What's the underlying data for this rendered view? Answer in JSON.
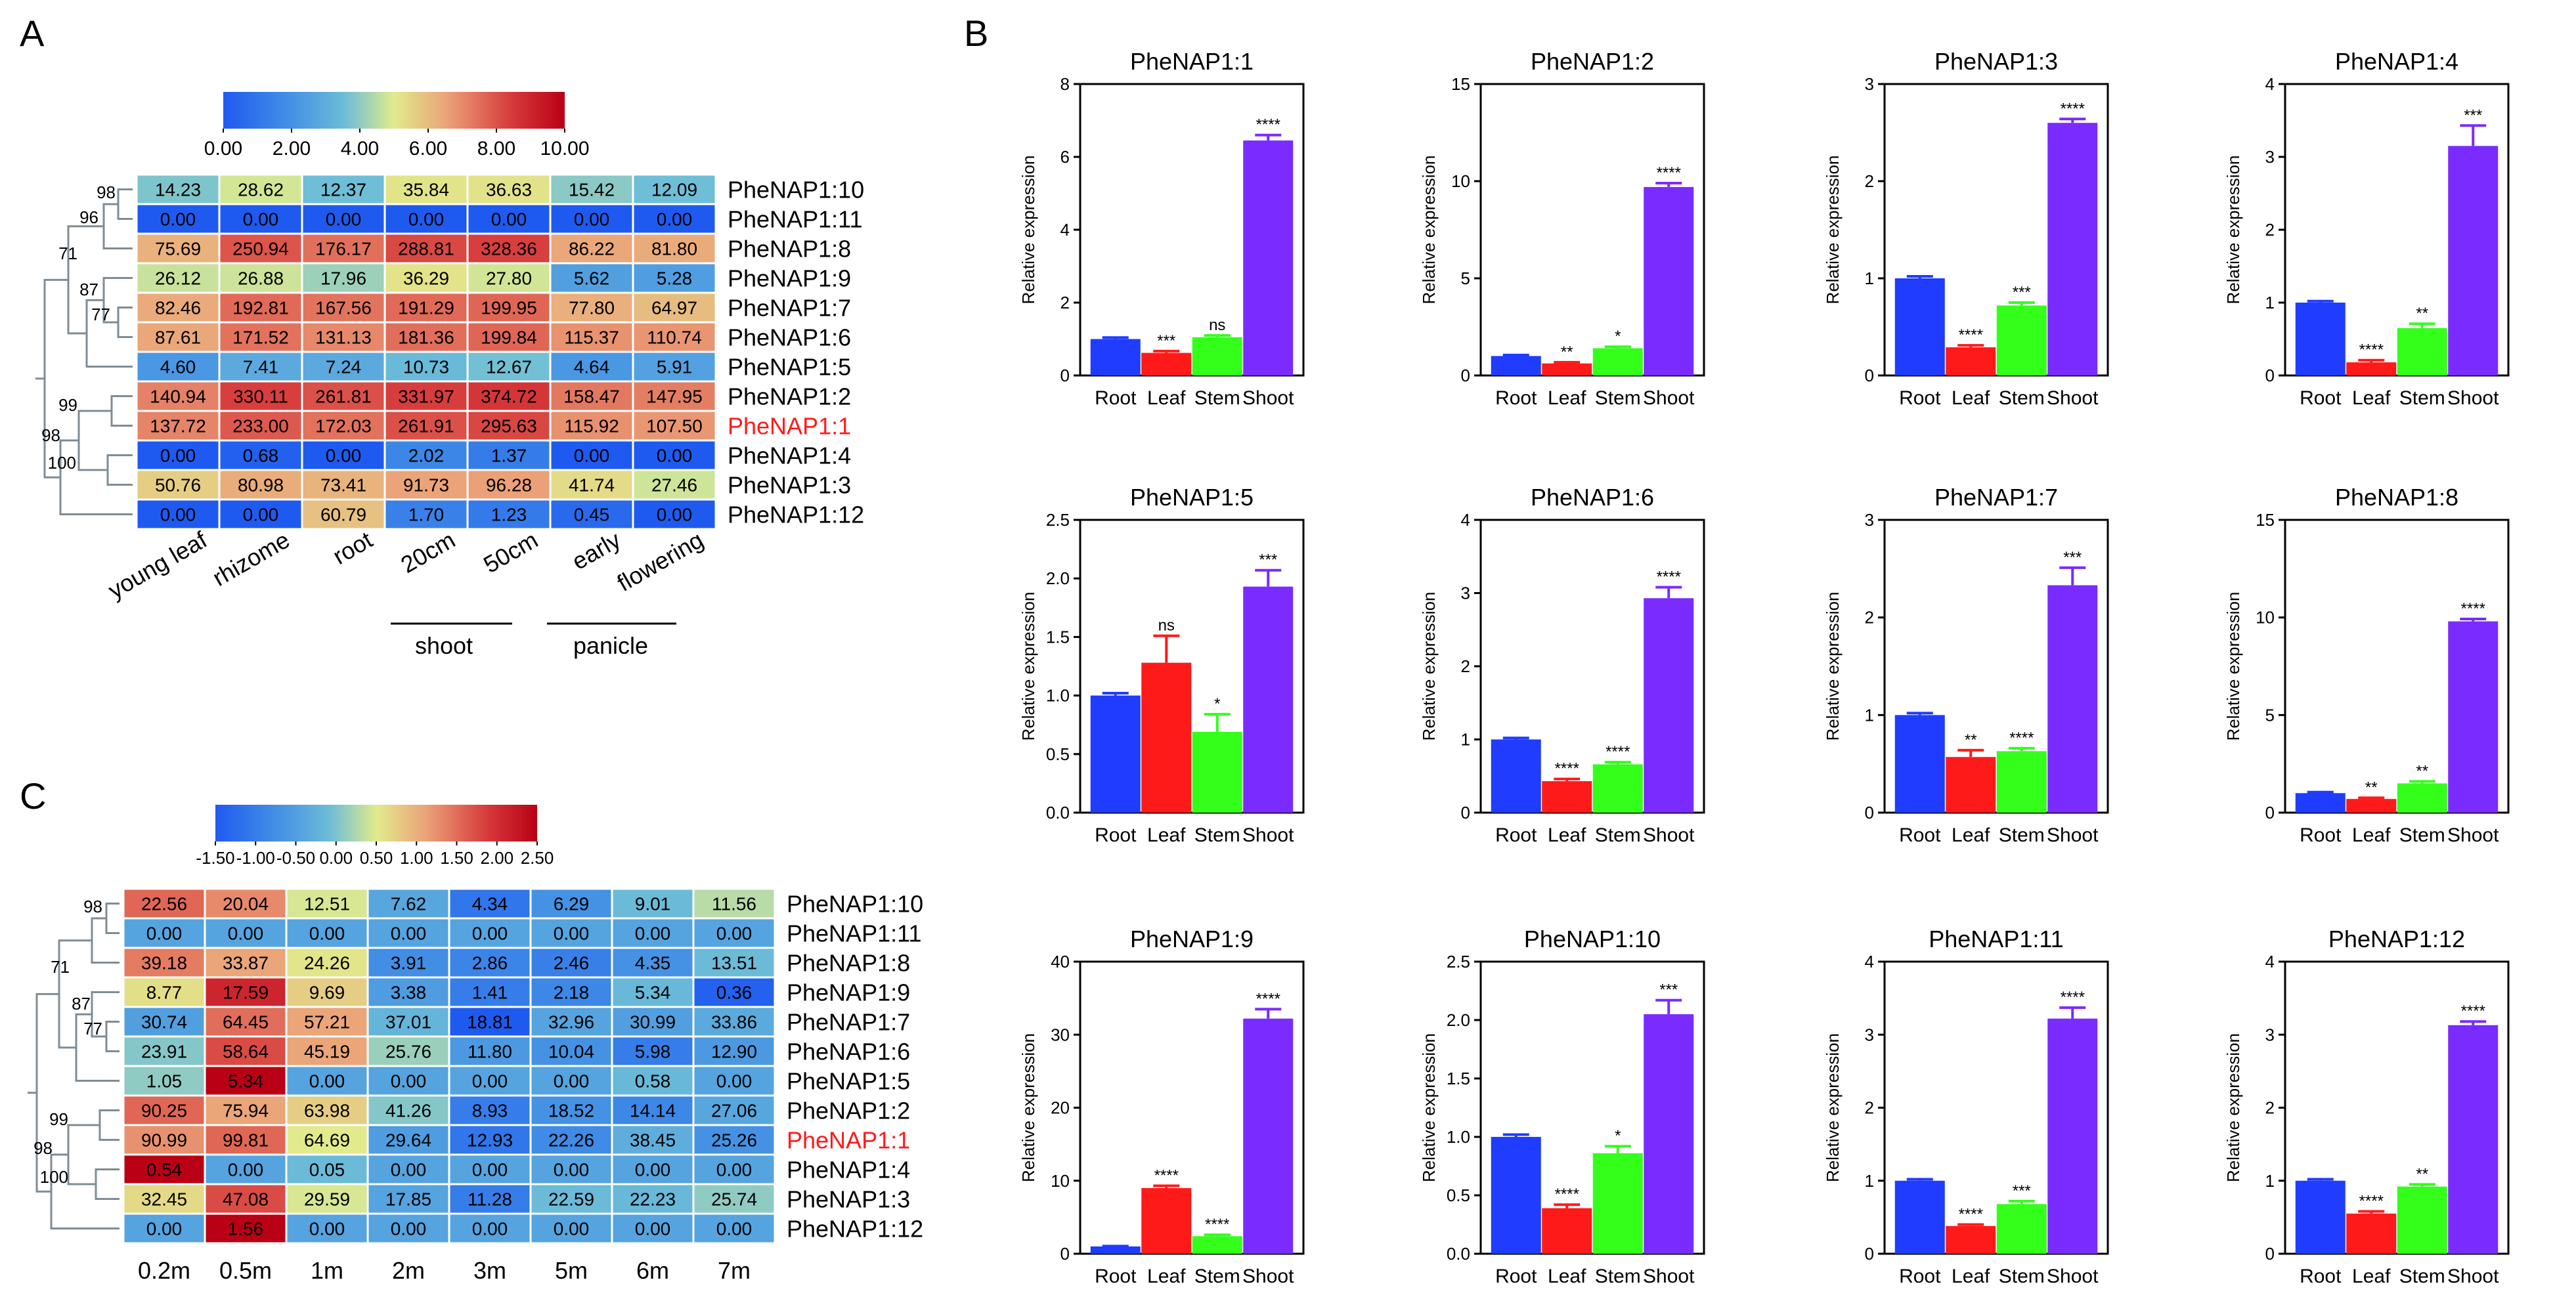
{
  "panels": {
    "a": "A",
    "b": "B",
    "c": "C"
  },
  "heatmap_a": {
    "colorbar_ticks": [
      "0.00",
      "2.00",
      "4.00",
      "6.00",
      "8.00",
      "10.00"
    ],
    "columns": [
      "young leaf",
      "rhizome",
      "root",
      "20cm",
      "50cm",
      "early",
      "flowering"
    ],
    "group_labels": [
      "shoot",
      "panicle"
    ],
    "rows": [
      {
        "label": "PheNAP1:10",
        "values": [
          "14.23",
          "28.62",
          "12.37",
          "35.84",
          "36.63",
          "15.42",
          "12.09"
        ],
        "color_values": [
          3.8,
          4.83,
          3.6,
          5.16,
          5.2,
          3.94,
          3.6
        ]
      },
      {
        "label": "PheNAP1:11",
        "values": [
          "0.00",
          "0.00",
          "0.00",
          "0.00",
          "0.00",
          "0.00",
          "0.00"
        ],
        "color_values": [
          0,
          0,
          0,
          0,
          0,
          0,
          0
        ]
      },
      {
        "label": "PheNAP1:8",
        "values": [
          "75.69",
          "250.94",
          "176.17",
          "288.81",
          "328.36",
          "86.22",
          "81.80"
        ],
        "color_values": [
          6.24,
          7.97,
          7.47,
          8.18,
          8.36,
          6.45,
          6.37
        ]
      },
      {
        "label": "PheNAP1:9",
        "values": [
          "26.12",
          "26.88",
          "17.96",
          "36.29",
          "27.80",
          "5.62",
          "5.28"
        ],
        "color_values": [
          4.7,
          4.75,
          4.16,
          5.18,
          4.8,
          2.49,
          2.43
        ]
      },
      {
        "label": "PheNAP1:7",
        "values": [
          "82.46",
          "192.81",
          "167.56",
          "191.29",
          "199.95",
          "77.80",
          "64.97"
        ],
        "color_values": [
          6.38,
          7.59,
          7.39,
          7.58,
          7.64,
          6.28,
          6.0
        ]
      },
      {
        "label": "PheNAP1:6",
        "values": [
          "87.61",
          "171.52",
          "131.13",
          "181.36",
          "199.84",
          "115.37",
          "110.74"
        ],
        "color_values": [
          6.46,
          7.43,
          7.04,
          7.5,
          7.64,
          6.86,
          6.8
        ]
      },
      {
        "label": "PheNAP1:5",
        "values": [
          "4.60",
          "7.41",
          "7.24",
          "10.73",
          "12.67",
          "4.64",
          "5.91"
        ],
        "color_values": [
          2.2,
          2.89,
          2.86,
          3.42,
          3.66,
          2.21,
          2.56
        ]
      },
      {
        "label": "PheNAP1:2",
        "values": [
          "140.94",
          "330.11",
          "261.81",
          "331.97",
          "374.72",
          "158.47",
          "147.95"
        ],
        "color_values": [
          7.15,
          8.37,
          8.04,
          8.38,
          8.55,
          7.32,
          7.22
        ]
      },
      {
        "label": "PheNAP1:1",
        "values": [
          "137.72",
          "233.00",
          "172.03",
          "261.91",
          "295.63",
          "115.92",
          "107.50"
        ],
        "color_values": [
          7.11,
          7.87,
          7.43,
          8.04,
          8.21,
          6.87,
          6.76
        ],
        "highlight": true
      },
      {
        "label": "PheNAP1:4",
        "values": [
          "0.00",
          "0.68",
          "0.00",
          "2.02",
          "1.37",
          "0.00",
          "0.00"
        ],
        "color_values": [
          0,
          0.23,
          0,
          1.59,
          1.24,
          0,
          0
        ]
      },
      {
        "label": "PheNAP1:3",
        "values": [
          "50.76",
          "80.98",
          "73.41",
          "91.73",
          "96.28",
          "41.74",
          "27.46"
        ],
        "color_values": [
          5.64,
          6.35,
          6.2,
          6.53,
          6.6,
          5.35,
          4.77
        ]
      },
      {
        "label": "PheNAP1:12",
        "values": [
          "0.00",
          "0.00",
          "60.79",
          "1.70",
          "1.23",
          "0.45",
          "0.00"
        ],
        "color_values": [
          0,
          0,
          5.9,
          1.42,
          1.16,
          0.57,
          0
        ]
      }
    ],
    "tree_labels": [
      "98",
      "96",
      "71",
      "87",
      "77",
      "99",
      "98",
      "100"
    ]
  },
  "heatmap_c": {
    "colorbar_ticks": [
      "-1.50",
      "-1.00",
      "-0.50",
      "0.00",
      "0.50",
      "1.00",
      "1.50",
      "2.00",
      "2.50"
    ],
    "columns": [
      "0.2m",
      "0.5m",
      "1m",
      "2m",
      "3m",
      "5m",
      "6m",
      "7m"
    ],
    "rows": [
      {
        "label": "PheNAP1:10",
        "values": [
          "22.56",
          "20.04",
          "12.51",
          "7.62",
          "4.34",
          "6.29",
          "9.01",
          "11.56"
        ],
        "color_values": [
          1.55,
          1.3,
          0.45,
          -0.4,
          -1.1,
          -0.7,
          -0.1,
          0.3
        ]
      },
      {
        "label": "PheNAP1:11",
        "values": [
          "0.00",
          "0.00",
          "0.00",
          "0.00",
          "0.00",
          "0.00",
          "0.00",
          "0.00"
        ],
        "color_values": [
          -0.45,
          -0.45,
          -0.45,
          -0.45,
          -0.45,
          -0.45,
          -0.45,
          -0.45
        ]
      },
      {
        "label": "PheNAP1:8",
        "values": [
          "39.18",
          "33.87",
          "24.26",
          "3.91",
          "2.86",
          "2.46",
          "4.35",
          "13.51"
        ],
        "color_values": [
          1.4,
          1.1,
          0.55,
          -0.75,
          -0.9,
          -0.95,
          -0.7,
          -0.1
        ]
      },
      {
        "label": "PheNAP1:9",
        "values": [
          "8.77",
          "17.59",
          "9.69",
          "3.38",
          "1.41",
          "2.18",
          "5.34",
          "0.36"
        ],
        "color_values": [
          0.6,
          2.1,
          0.75,
          -0.55,
          -1.0,
          -0.85,
          -0.15,
          -1.4
        ]
      },
      {
        "label": "PheNAP1:7",
        "values": [
          "30.74",
          "64.45",
          "57.21",
          "37.01",
          "18.81",
          "32.96",
          "30.99",
          "33.86"
        ],
        "color_values": [
          -0.5,
          1.5,
          1.1,
          -0.2,
          -1.5,
          -0.45,
          -0.5,
          -0.35
        ]
      },
      {
        "label": "PheNAP1:6",
        "values": [
          "23.91",
          "58.64",
          "45.19",
          "25.76",
          "11.80",
          "10.04",
          "5.98",
          "12.90"
        ],
        "color_values": [
          0.05,
          1.75,
          1.1,
          0.15,
          -0.6,
          -0.7,
          -1.0,
          -0.6
        ]
      },
      {
        "label": "PheNAP1:5",
        "values": [
          "1.05",
          "5.34",
          "0.00",
          "0.00",
          "0.00",
          "0.00",
          "0.58",
          "0.00"
        ],
        "color_values": [
          0.1,
          2.5,
          -0.45,
          -0.45,
          -0.45,
          -0.45,
          -0.15,
          -0.45
        ]
      },
      {
        "label": "PheNAP1:2",
        "values": [
          "90.25",
          "75.94",
          "63.98",
          "41.26",
          "8.93",
          "18.52",
          "14.14",
          "27.06"
        ],
        "color_values": [
          1.55,
          1.1,
          0.75,
          0.05,
          -1.0,
          -0.7,
          -0.85,
          -0.4
        ]
      },
      {
        "label": "PheNAP1:1",
        "values": [
          "90.99",
          "99.81",
          "64.69",
          "29.64",
          "12.93",
          "22.26",
          "38.45",
          "25.26"
        ],
        "color_values": [
          1.25,
          1.55,
          0.5,
          -0.55,
          -1.1,
          -0.8,
          -0.3,
          -0.7
        ],
        "highlight": true
      },
      {
        "label": "PheNAP1:4",
        "values": [
          "0.54",
          "0.00",
          "0.05",
          "0.00",
          "0.00",
          "0.00",
          "0.00",
          "0.00"
        ],
        "color_values": [
          2.5,
          -0.45,
          -0.1,
          -0.45,
          -0.45,
          -0.45,
          -0.45,
          -0.45
        ]
      },
      {
        "label": "PheNAP1:3",
        "values": [
          "32.45",
          "47.08",
          "29.59",
          "17.85",
          "11.28",
          "22.59",
          "22.23",
          "25.74"
        ],
        "color_values": [
          0.65,
          1.75,
          0.45,
          -0.45,
          -1.0,
          -0.1,
          -0.15,
          0.1
        ]
      },
      {
        "label": "PheNAP1:12",
        "values": [
          "0.00",
          "1.56",
          "0.00",
          "0.00",
          "0.00",
          "0.00",
          "0.00",
          "0.00"
        ],
        "color_values": [
          -0.45,
          2.5,
          -0.45,
          -0.45,
          -0.45,
          -0.45,
          -0.45,
          -0.45
        ]
      }
    ],
    "tree_labels": [
      "98",
      "71",
      "87",
      "77",
      "99",
      "98",
      "100"
    ]
  },
  "chart_data": [
    {
      "type": "bar",
      "title": "PheNAP1:1",
      "categories": [
        "Root",
        "Leaf",
        "Stem",
        "Shoot"
      ],
      "values": [
        1.0,
        0.62,
        1.05,
        6.45
      ],
      "errors": [
        0.04,
        0.05,
        0.05,
        0.15
      ],
      "significance": [
        "",
        "***",
        "ns",
        "****"
      ],
      "ylabel": "Relative expression",
      "ylim": [
        0,
        8
      ],
      "yticks": [
        "0",
        "2",
        "4",
        "6",
        "8"
      ],
      "colors": [
        "#1f3cff",
        "#ff1a1a",
        "#33ff1a",
        "#7a2bff"
      ]
    },
    {
      "type": "bar",
      "title": "PheNAP1:2",
      "categories": [
        "Root",
        "Leaf",
        "Stem",
        "Shoot"
      ],
      "values": [
        1.0,
        0.62,
        1.4,
        9.7
      ],
      "errors": [
        0.05,
        0.06,
        0.08,
        0.2
      ],
      "significance": [
        "",
        "**",
        "*",
        "****"
      ],
      "ylabel": "Relative expression",
      "ylim": [
        0,
        15
      ],
      "yticks": [
        "0",
        "5",
        "10",
        "15"
      ],
      "colors": [
        "#1f3cff",
        "#ff1a1a",
        "#33ff1a",
        "#7a2bff"
      ]
    },
    {
      "type": "bar",
      "title": "PheNAP1:3",
      "categories": [
        "Root",
        "Leaf",
        "Stem",
        "Shoot"
      ],
      "values": [
        1.0,
        0.29,
        0.72,
        2.6
      ],
      "errors": [
        0.02,
        0.02,
        0.03,
        0.04
      ],
      "significance": [
        "",
        "****",
        "***",
        "****"
      ],
      "ylabel": "Relative expression",
      "ylim": [
        0,
        3
      ],
      "yticks": [
        "0",
        "1",
        "2",
        "3"
      ],
      "colors": [
        "#1f3cff",
        "#ff1a1a",
        "#33ff1a",
        "#7a2bff"
      ]
    },
    {
      "type": "bar",
      "title": "PheNAP1:4",
      "categories": [
        "Root",
        "Leaf",
        "Stem",
        "Shoot"
      ],
      "values": [
        1.0,
        0.18,
        0.65,
        3.15
      ],
      "errors": [
        0.02,
        0.03,
        0.06,
        0.28
      ],
      "significance": [
        "",
        "****",
        "**",
        "***"
      ],
      "ylabel": "Relative expression",
      "ylim": [
        0,
        4
      ],
      "yticks": [
        "0",
        "1",
        "2",
        "3",
        "4"
      ],
      "colors": [
        "#1f3cff",
        "#ff1a1a",
        "#33ff1a",
        "#7a2bff"
      ]
    },
    {
      "type": "bar",
      "title": "PheNAP1:5",
      "categories": [
        "Root",
        "Leaf",
        "Stem",
        "Shoot"
      ],
      "values": [
        1.0,
        1.28,
        0.69,
        1.93
      ],
      "errors": [
        0.02,
        0.23,
        0.15,
        0.14
      ],
      "significance": [
        "",
        "ns",
        "*",
        "***"
      ],
      "ylabel": "Relative expression",
      "ylim": [
        0,
        2.5
      ],
      "yticks": [
        "0.0",
        "0.5",
        "1.0",
        "1.5",
        "2.0",
        "2.5"
      ],
      "colors": [
        "#1f3cff",
        "#ff1a1a",
        "#33ff1a",
        "#7a2bff"
      ]
    },
    {
      "type": "bar",
      "title": "PheNAP1:6",
      "categories": [
        "Root",
        "Leaf",
        "Stem",
        "Shoot"
      ],
      "values": [
        1.0,
        0.43,
        0.66,
        2.93
      ],
      "errors": [
        0.02,
        0.03,
        0.03,
        0.15
      ],
      "significance": [
        "",
        "****",
        "****",
        "****"
      ],
      "ylabel": "Relative expression",
      "ylim": [
        0,
        4
      ],
      "yticks": [
        "0",
        "1",
        "2",
        "3",
        "4"
      ],
      "colors": [
        "#1f3cff",
        "#ff1a1a",
        "#33ff1a",
        "#7a2bff"
      ]
    },
    {
      "type": "bar",
      "title": "PheNAP1:7",
      "categories": [
        "Root",
        "Leaf",
        "Stem",
        "Shoot"
      ],
      "values": [
        1.0,
        0.57,
        0.63,
        2.33
      ],
      "errors": [
        0.02,
        0.07,
        0.03,
        0.18
      ],
      "significance": [
        "",
        "**",
        "****",
        "***"
      ],
      "ylabel": "Relative expression",
      "ylim": [
        0,
        3
      ],
      "yticks": [
        "0",
        "1",
        "2",
        "3"
      ],
      "colors": [
        "#1f3cff",
        "#ff1a1a",
        "#33ff1a",
        "#7a2bff"
      ]
    },
    {
      "type": "bar",
      "title": "PheNAP1:8",
      "categories": [
        "Root",
        "Leaf",
        "Stem",
        "Shoot"
      ],
      "values": [
        1.0,
        0.7,
        1.5,
        9.8
      ],
      "errors": [
        0.05,
        0.06,
        0.1,
        0.12
      ],
      "significance": [
        "",
        "**",
        "**",
        "****"
      ],
      "ylabel": "Relative expression",
      "ylim": [
        0,
        15
      ],
      "yticks": [
        "0",
        "5",
        "10",
        "15"
      ],
      "colors": [
        "#1f3cff",
        "#ff1a1a",
        "#33ff1a",
        "#7a2bff"
      ]
    },
    {
      "type": "bar",
      "title": "PheNAP1:9",
      "categories": [
        "Root",
        "Leaf",
        "Stem",
        "Shoot"
      ],
      "values": [
        1.0,
        9.0,
        2.4,
        32.2
      ],
      "errors": [
        0.05,
        0.3,
        0.2,
        1.3
      ],
      "significance": [
        "",
        "****",
        "****",
        "****"
      ],
      "ylabel": "Relative expression",
      "ylim": [
        0,
        40
      ],
      "yticks": [
        "0",
        "10",
        "20",
        "30",
        "40"
      ],
      "colors": [
        "#1f3cff",
        "#ff1a1a",
        "#33ff1a",
        "#7a2bff"
      ]
    },
    {
      "type": "bar",
      "title": "PheNAP1:10",
      "categories": [
        "Root",
        "Leaf",
        "Stem",
        "Shoot"
      ],
      "values": [
        1.0,
        0.39,
        0.86,
        2.05
      ],
      "errors": [
        0.02,
        0.03,
        0.06,
        0.12
      ],
      "significance": [
        "",
        "****",
        "*",
        "***"
      ],
      "ylabel": "Relative expression",
      "ylim": [
        0,
        2.5
      ],
      "yticks": [
        "0.0",
        "0.5",
        "1.0",
        "1.5",
        "2.0",
        "2.5"
      ],
      "colors": [
        "#1f3cff",
        "#ff1a1a",
        "#33ff1a",
        "#7a2bff"
      ]
    },
    {
      "type": "bar",
      "title": "PheNAP1:11",
      "categories": [
        "Root",
        "Leaf",
        "Stem",
        "Shoot"
      ],
      "values": [
        1.0,
        0.38,
        0.68,
        3.22
      ],
      "errors": [
        0.02,
        0.02,
        0.04,
        0.15
      ],
      "significance": [
        "",
        "****",
        "***",
        "****"
      ],
      "ylabel": "Relative expression",
      "ylim": [
        0,
        4
      ],
      "yticks": [
        "0",
        "1",
        "2",
        "3",
        "4"
      ],
      "colors": [
        "#1f3cff",
        "#ff1a1a",
        "#33ff1a",
        "#7a2bff"
      ]
    },
    {
      "type": "bar",
      "title": "PheNAP1:12",
      "categories": [
        "Root",
        "Leaf",
        "Stem",
        "Shoot"
      ],
      "values": [
        1.0,
        0.55,
        0.92,
        3.13
      ],
      "errors": [
        0.02,
        0.03,
        0.03,
        0.05
      ],
      "significance": [
        "",
        "****",
        "**",
        "****"
      ],
      "ylabel": "Relative expression",
      "ylim": [
        0,
        4
      ],
      "yticks": [
        "0",
        "1",
        "2",
        "3",
        "4"
      ],
      "colors": [
        "#1f3cff",
        "#ff1a1a",
        "#33ff1a",
        "#7a2bff"
      ]
    }
  ]
}
